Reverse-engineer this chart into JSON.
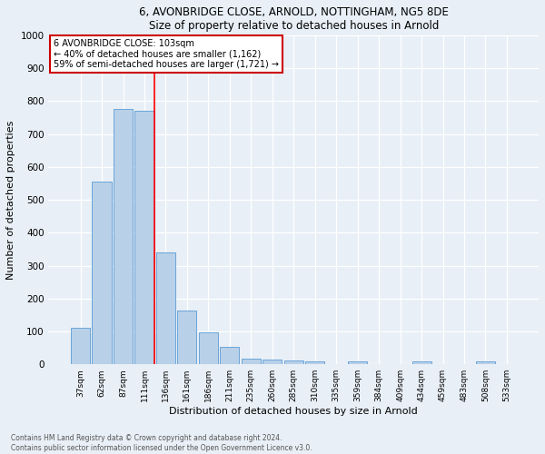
{
  "title1": "6, AVONBRIDGE CLOSE, ARNOLD, NOTTINGHAM, NG5 8DE",
  "title2": "Size of property relative to detached houses in Arnold",
  "xlabel": "Distribution of detached houses by size in Arnold",
  "ylabel": "Number of detached properties",
  "bar_color": "#b8d0e8",
  "bar_edge_color": "#5b9bd5",
  "categories": [
    "37sqm",
    "62sqm",
    "87sqm",
    "111sqm",
    "136sqm",
    "161sqm",
    "186sqm",
    "211sqm",
    "235sqm",
    "260sqm",
    "285sqm",
    "310sqm",
    "335sqm",
    "359sqm",
    "384sqm",
    "409sqm",
    "434sqm",
    "459sqm",
    "483sqm",
    "508sqm",
    "533sqm"
  ],
  "values": [
    110,
    555,
    775,
    770,
    340,
    163,
    97,
    52,
    18,
    14,
    12,
    10,
    0,
    8,
    0,
    0,
    8,
    0,
    0,
    8,
    0
  ],
  "property_line_index": 3,
  "annotation_line1": "6 AVONBRIDGE CLOSE: 103sqm",
  "annotation_line2": "← 40% of detached houses are smaller (1,162)",
  "annotation_line3": "59% of semi-detached houses are larger (1,721) →",
  "annotation_box_color": "#ffffff",
  "annotation_border_color": "#cc0000",
  "ylim": [
    0,
    1000
  ],
  "yticks": [
    0,
    100,
    200,
    300,
    400,
    500,
    600,
    700,
    800,
    900,
    1000
  ],
  "footer1": "Contains HM Land Registry data © Crown copyright and database right 2024.",
  "footer2": "Contains public sector information licensed under the Open Government Licence v3.0.",
  "bg_color": "#e8eff6"
}
